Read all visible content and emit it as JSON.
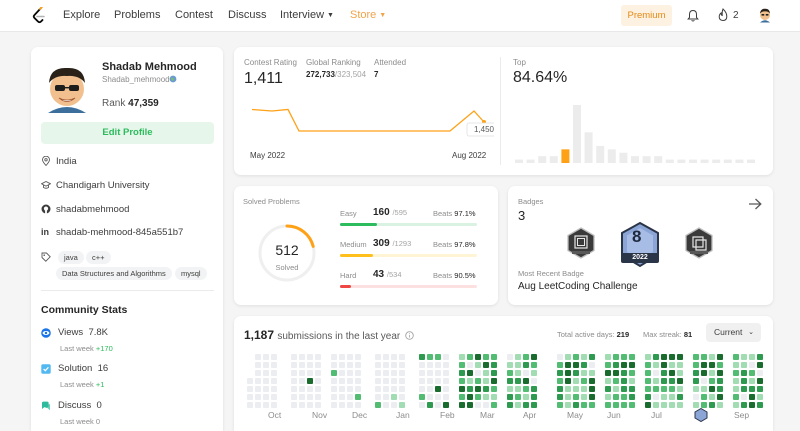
{
  "colors": {
    "accent": "#ffa116",
    "easy": "#2cbb5d",
    "medium": "#ffc01e",
    "hard": "#ef4743",
    "heat": [
      "#ebedf0",
      "#a2dcb2",
      "#52bc72",
      "#2d9a4f",
      "#196c2e"
    ]
  },
  "nav": {
    "items": [
      "Explore",
      "Problems",
      "Contest",
      "Discuss",
      "Interview",
      "Store"
    ],
    "premium": "Premium",
    "fire_count": "2"
  },
  "profile": {
    "name": "Shadab Mehmood",
    "username": "Shadab_mehmood",
    "rank_label": "Rank",
    "rank": "47,359",
    "edit_label": "Edit Profile",
    "location": "India",
    "school": "Chandigarh University",
    "github": "shadabmehmood",
    "linkedin": "shadab-mehmood-845a551b7",
    "skills": [
      "java",
      "c++",
      "Data Structures and Algorithms",
      "mysql"
    ]
  },
  "community": {
    "title": "Community Stats",
    "stats": [
      {
        "label": "Views",
        "value": "7.8K",
        "sub": "Last week",
        "delta": "+170"
      },
      {
        "label": "Solution",
        "value": "16",
        "sub": "Last week",
        "delta": "+1"
      },
      {
        "label": "Discuss",
        "value": "0",
        "sub": "Last week",
        "delta": "0"
      }
    ]
  },
  "contest": {
    "rating_label": "Contest Rating",
    "rating": "1,411",
    "ranking_label": "Global Ranking",
    "ranking": "272,733",
    "ranking_total": "/323,504",
    "attended_label": "Attended",
    "attended": "7",
    "top_label": "Top",
    "top": "84.64%",
    "x_start": "May 2022",
    "x_end": "Aug 2022",
    "tooltip": "1,450"
  },
  "chart_data": {
    "type": "line",
    "x": [
      "2022-05",
      "2022-05",
      "2022-06",
      "2022-06",
      "2022-06",
      "2022-07",
      "2022-07",
      "2022-07",
      "2022-08",
      "2022-08",
      "2022-08"
    ],
    "values": [
      1475,
      1472,
      1475,
      1432,
      1432,
      1432,
      1432,
      1432,
      1432,
      1472,
      1450
    ],
    "xlabel": "",
    "ylabel": "",
    "highlight": "1,450"
  },
  "distribution": {
    "values": [
      1,
      1,
      2,
      2,
      4,
      17,
      9,
      5,
      4,
      3,
      2,
      2,
      2,
      1,
      1,
      1,
      1,
      1,
      1,
      1,
      1
    ],
    "highlight_index": 4
  },
  "solved": {
    "title": "Solved Problems",
    "total": "512",
    "total_label": "Solved",
    "beats_label": "Beats",
    "rows": [
      {
        "label": "Easy",
        "solved": "160",
        "total": "/595",
        "beats": "97.1%",
        "fraction": 0.27
      },
      {
        "label": "Medium",
        "solved": "309",
        "total": "/1293",
        "beats": "97.8%",
        "fraction": 0.24
      },
      {
        "label": "Hard",
        "solved": "43",
        "total": "/534",
        "beats": "90.5%",
        "fraction": 0.08
      }
    ],
    "ring_fraction": 0.21
  },
  "badges": {
    "title": "Badges",
    "count": "3",
    "recent_label": "Most Recent Badge",
    "recent": "Aug LeetCoding Challenge",
    "year": "2022",
    "digit": "8",
    "icons": [
      "50-days-badge-icon",
      "aug-leetcoding-badge-icon",
      "binary-search-badge-icon"
    ]
  },
  "activity": {
    "count": "1,187",
    "label": "submissions in the last year",
    "active_label": "Total active days:",
    "active": "219",
    "streak_label": "Max streak:",
    "streak": "81",
    "current": "Current",
    "months": [
      "Oct",
      "Nov",
      "Dec",
      "Jan",
      "Feb",
      "Mar",
      "Apr",
      "May",
      "Jun",
      "Jul",
      "Sep"
    ]
  }
}
